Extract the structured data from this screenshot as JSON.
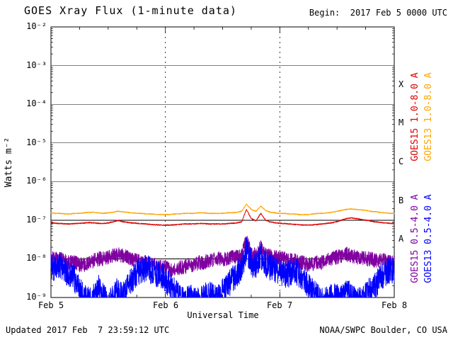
{
  "title": "GOES Xray Flux (1-minute data)",
  "begin_label": "Begin:  2017 Feb 5 0000 UTC",
  "footer": {
    "updated": "Updated 2017 Feb  7 23:59:12 UTC",
    "credit": "NOAA/SWPC Boulder, CO USA"
  },
  "axes": {
    "ylabel": "Watts m⁻²",
    "xlabel": "Universal Time",
    "ytick_labels": [
      "10⁻²",
      "10⁻³",
      "10⁻⁴",
      "10⁻⁵",
      "10⁻⁶",
      "10⁻⁷",
      "10⁻⁸",
      "10⁻⁹"
    ],
    "xtick_labels": [
      "Feb 5",
      "Feb 6",
      "Feb 7",
      "Feb 8"
    ],
    "flare_class_labels": [
      "X",
      "M",
      "C",
      "B",
      "A"
    ]
  },
  "chart_data": {
    "type": "line",
    "title": "GOES Xray Flux (1-minute data)",
    "xlabel": "Universal Time",
    "ylabel": "Watts m⁻²",
    "x_unit": "hours since 2017 Feb 5 0000 UTC",
    "x_range_hours": [
      0,
      72
    ],
    "x_tick_hours": [
      0,
      24,
      48,
      72
    ],
    "x_tick_labels": [
      "Feb 5",
      "Feb 6",
      "Feb 7",
      "Feb 8"
    ],
    "y_scale": "log10",
    "y_range": [
      1e-09,
      0.01
    ],
    "grid": "horizontal solid line per decade; vertical dashed line per day boundary",
    "legend_position": "right, rotated 90 degrees",
    "flare_classes": [
      "X",
      "M",
      "C",
      "B",
      "A"
    ],
    "sample_step_hours": 1,
    "series": [
      {
        "name": "GOES15 1.0-8.0 A",
        "color": "#dd0000",
        "noise_log10": 0.013,
        "values": [
          8.5e-08,
          8.3e-08,
          8.2e-08,
          8e-08,
          8e-08,
          8.2e-08,
          8.3e-08,
          8.5e-08,
          8.6e-08,
          8.5e-08,
          8.3e-08,
          8.2e-08,
          8.5e-08,
          9e-08,
          9.8e-08,
          9.2e-08,
          8.8e-08,
          8.5e-08,
          8.3e-08,
          8.2e-08,
          8e-08,
          7.8e-08,
          7.6e-08,
          7.5e-08,
          7.5e-08,
          7.5e-08,
          7.6e-08,
          7.8e-08,
          8e-08,
          8e-08,
          8e-08,
          8.2e-08,
          8.2e-08,
          8e-08,
          8e-08,
          8e-08,
          8e-08,
          8.2e-08,
          8.3e-08,
          8.5e-08,
          9e-08,
          1.9e-07,
          1.1e-07,
          9.5e-08,
          1.5e-07,
          1e-07,
          9e-08,
          8.6e-08,
          8.3e-08,
          8.2e-08,
          8e-08,
          7.8e-08,
          7.6e-08,
          7.5e-08,
          7.5e-08,
          7.6e-08,
          7.8e-08,
          8e-08,
          8.3e-08,
          8.6e-08,
          9.2e-08,
          1e-07,
          1.1e-07,
          1.15e-07,
          1.1e-07,
          1.05e-07,
          1e-07,
          9.5e-08,
          9e-08,
          8.8e-08,
          8.5e-08,
          8.3e-08,
          8.2e-08
        ]
      },
      {
        "name": "GOES13 1.0-8.0 A",
        "color": "#ffa500",
        "noise_log10": 0.011,
        "values": [
          1.55e-07,
          1.5e-07,
          1.5e-07,
          1.45e-07,
          1.45e-07,
          1.5e-07,
          1.5e-07,
          1.55e-07,
          1.6e-07,
          1.6e-07,
          1.55e-07,
          1.5e-07,
          1.55e-07,
          1.6e-07,
          1.7e-07,
          1.65e-07,
          1.6e-07,
          1.55e-07,
          1.5e-07,
          1.5e-07,
          1.45e-07,
          1.45e-07,
          1.4e-07,
          1.4e-07,
          1.4e-07,
          1.4e-07,
          1.45e-07,
          1.45e-07,
          1.5e-07,
          1.5e-07,
          1.5e-07,
          1.55e-07,
          1.55e-07,
          1.5e-07,
          1.5e-07,
          1.5e-07,
          1.5e-07,
          1.55e-07,
          1.55e-07,
          1.6e-07,
          1.7e-07,
          2.6e-07,
          1.9e-07,
          1.7e-07,
          2.3e-07,
          1.8e-07,
          1.6e-07,
          1.55e-07,
          1.5e-07,
          1.5e-07,
          1.45e-07,
          1.45e-07,
          1.4e-07,
          1.4e-07,
          1.4e-07,
          1.45e-07,
          1.5e-07,
          1.5e-07,
          1.55e-07,
          1.6e-07,
          1.7e-07,
          1.8e-07,
          1.9e-07,
          1.95e-07,
          1.9e-07,
          1.85e-07,
          1.8e-07,
          1.7e-07,
          1.65e-07,
          1.6e-07,
          1.55e-07,
          1.5e-07,
          1.5e-07
        ]
      },
      {
        "name": "GOES15 0.5-4.0 A",
        "color": "#8000a0",
        "noise_log10": 0.19,
        "values": [
          1.1e-08,
          1e-08,
          1e-08,
          9e-09,
          8e-09,
          8e-09,
          7e-09,
          7e-09,
          8e-09,
          9e-09,
          1e-08,
          1e-08,
          1.1e-08,
          1.2e-08,
          1.3e-08,
          1.2e-08,
          1.1e-08,
          1e-08,
          9e-09,
          8e-09,
          8e-09,
          7e-09,
          7e-09,
          6e-09,
          6e-09,
          5e-09,
          5e-09,
          6e-09,
          6e-09,
          7e-09,
          7e-09,
          8e-09,
          8e-09,
          9e-09,
          9e-09,
          1e-08,
          1e-08,
          1e-08,
          1.1e-08,
          1.1e-08,
          1.2e-08,
          3e-08,
          1.5e-08,
          1.2e-08,
          2e-08,
          1.3e-08,
          1.2e-08,
          1.1e-08,
          1e-08,
          1e-08,
          9e-09,
          9e-09,
          8e-09,
          8e-09,
          7e-09,
          7e-09,
          8e-09,
          8e-09,
          9e-09,
          1e-08,
          1.1e-08,
          1.2e-08,
          1.3e-08,
          1.2e-08,
          1.1e-08,
          1.1e-08,
          1e-08,
          1e-08,
          9e-09,
          9e-09,
          9e-09,
          8e-09,
          8e-09
        ]
      },
      {
        "name": "GOES13 0.5-4.0 A",
        "color": "#0000ff",
        "noise_log10": 0.35,
        "values": [
          6e-09,
          5e-09,
          7e-09,
          5e-09,
          4e-09,
          3e-09,
          1.5e-09,
          1e-09,
          8e-10,
          1e-09,
          2e-09,
          1e-09,
          8e-10,
          1e-09,
          1.5e-09,
          1e-09,
          2e-09,
          3e-09,
          4e-09,
          5e-09,
          6e-09,
          5e-09,
          4e-09,
          4e-09,
          3e-09,
          2e-09,
          1.5e-09,
          1e-09,
          8e-10,
          1e-09,
          1e-09,
          8e-10,
          1e-09,
          1.5e-09,
          1e-09,
          1e-09,
          1.5e-09,
          2e-09,
          3e-09,
          4e-09,
          6e-09,
          1.8e-08,
          8e-09,
          6e-09,
          1.2e-08,
          7e-09,
          6e-09,
          5e-09,
          5e-09,
          4e-09,
          4e-09,
          5e-09,
          4e-09,
          3e-09,
          2e-09,
          1.5e-09,
          1e-09,
          8e-10,
          1e-09,
          1e-09,
          1.2e-09,
          1e-09,
          1.5e-09,
          1e-09,
          8e-10,
          1e-09,
          1.2e-09,
          1.5e-09,
          2e-09,
          3e-09,
          4e-09,
          5e-09,
          5e-09
        ]
      }
    ]
  }
}
